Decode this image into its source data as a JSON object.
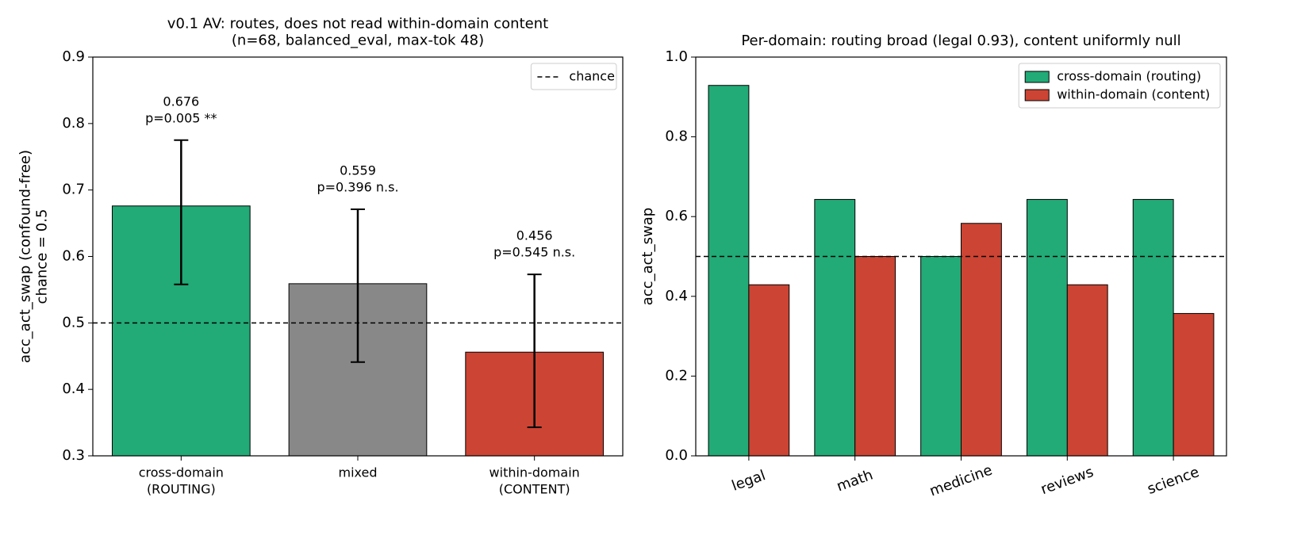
{
  "chart_data": [
    {
      "type": "bar",
      "title": "v0.1 AV: routes, does not read within-domain content\n(n=68, balanced_eval, max-tok 48)",
      "y_label": "acc_act_swap (confound-free)\nchance = 0.5",
      "categories": [
        "cross-domain\n(ROUTING)",
        "mixed",
        "within-domain\n(CONTENT)"
      ],
      "values": [
        0.676,
        0.559,
        0.456
      ],
      "ci_low": [
        0.558,
        0.441,
        0.343
      ],
      "ci_high": [
        0.775,
        0.671,
        0.573
      ],
      "colors": [
        "#22aa77",
        "#888888",
        "#cc4433"
      ],
      "value_labels": [
        "0.676",
        "0.559",
        "0.456"
      ],
      "annotations": [
        "p=0.005 **",
        "p=0.396 n.s.",
        "p=0.545 n.s."
      ],
      "hline": 0.5,
      "hline_label": "chance",
      "ylim": [
        0.3,
        0.9
      ],
      "yticks": [
        0.3,
        0.4,
        0.5,
        0.6,
        0.7,
        0.8,
        0.9
      ],
      "legend": "upper right"
    },
    {
      "type": "grouped_bar",
      "title": "Per-domain: routing broad (legal 0.93), content uniformly null",
      "y_label": "acc_act_swap",
      "categories": [
        "legal",
        "math",
        "medicine",
        "reviews",
        "science"
      ],
      "series": [
        {
          "name": "cross-domain (routing)",
          "color": "#22aa77",
          "values": [
            0.929,
            0.643,
            0.5,
            0.643,
            0.643
          ]
        },
        {
          "name": "within-domain (content)",
          "color": "#cc4433",
          "values": [
            0.429,
            0.5,
            0.583,
            0.429,
            0.357
          ]
        }
      ],
      "hline": 0.5,
      "ylim": [
        0,
        1
      ],
      "yticks": [
        {
          "value": 0,
          "label": "0.0"
        },
        0.2,
        0.4,
        0.6,
        0.8,
        {
          "value": 1,
          "label": "1.0"
        }
      ],
      "legend": "upper right"
    }
  ]
}
